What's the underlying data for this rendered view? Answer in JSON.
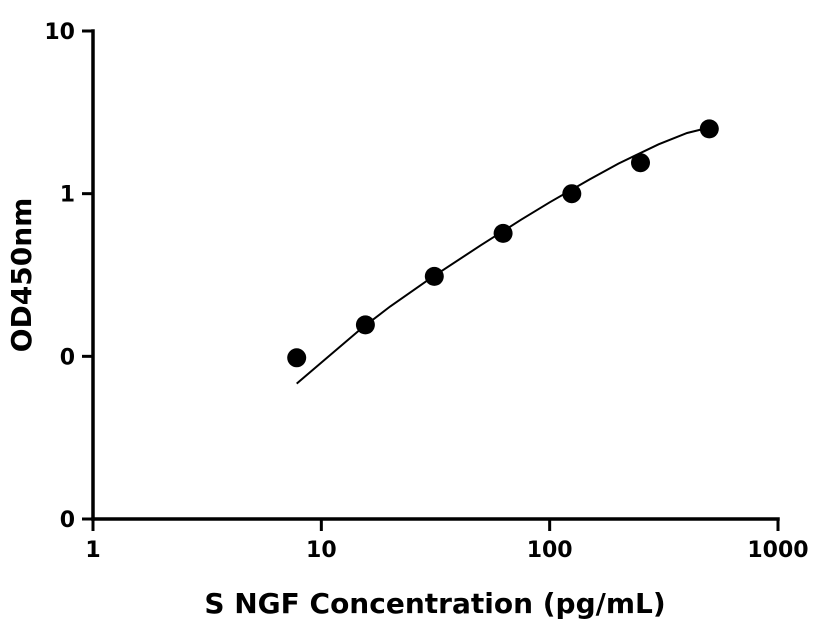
{
  "chart_data": {
    "type": "scatter",
    "title": "",
    "xlabel": "S NGF Concentration (pg/mL)",
    "ylabel": "OD450nm",
    "x_scale": "log",
    "y_scale": "log",
    "xlim": [
      1,
      1000
    ],
    "ylim": [
      0.01,
      10
    ],
    "x_ticks": [
      {
        "value": 1,
        "label": "1"
      },
      {
        "value": 10,
        "label": "10"
      },
      {
        "value": 100,
        "label": "100"
      },
      {
        "value": 1000,
        "label": "1000"
      }
    ],
    "y_ticks": [
      {
        "value": 0.01,
        "label": "0"
      },
      {
        "value": 0.1,
        "label": "0"
      },
      {
        "value": 1,
        "label": "1"
      },
      {
        "value": 10,
        "label": "10"
      }
    ],
    "grid": false,
    "legend": "none",
    "series": [
      {
        "x": [
          7.8,
          15.6,
          31.25,
          62.5,
          125,
          250,
          500
        ],
        "y": [
          0.098,
          0.156,
          0.31,
          0.57,
          1.0,
          1.55,
          2.5
        ]
      }
    ],
    "fit_curve": {
      "x": [
        7.8,
        10,
        15,
        20,
        30,
        50,
        75,
        100,
        150,
        200,
        300,
        400,
        500
      ],
      "y": [
        0.068,
        0.0915,
        0.1485,
        0.2025,
        0.3015,
        0.482,
        0.692,
        0.885,
        1.226,
        1.53,
        2.01,
        2.36,
        2.55
      ]
    },
    "colors": {
      "marker": "#000000",
      "line": "#000000"
    }
  }
}
